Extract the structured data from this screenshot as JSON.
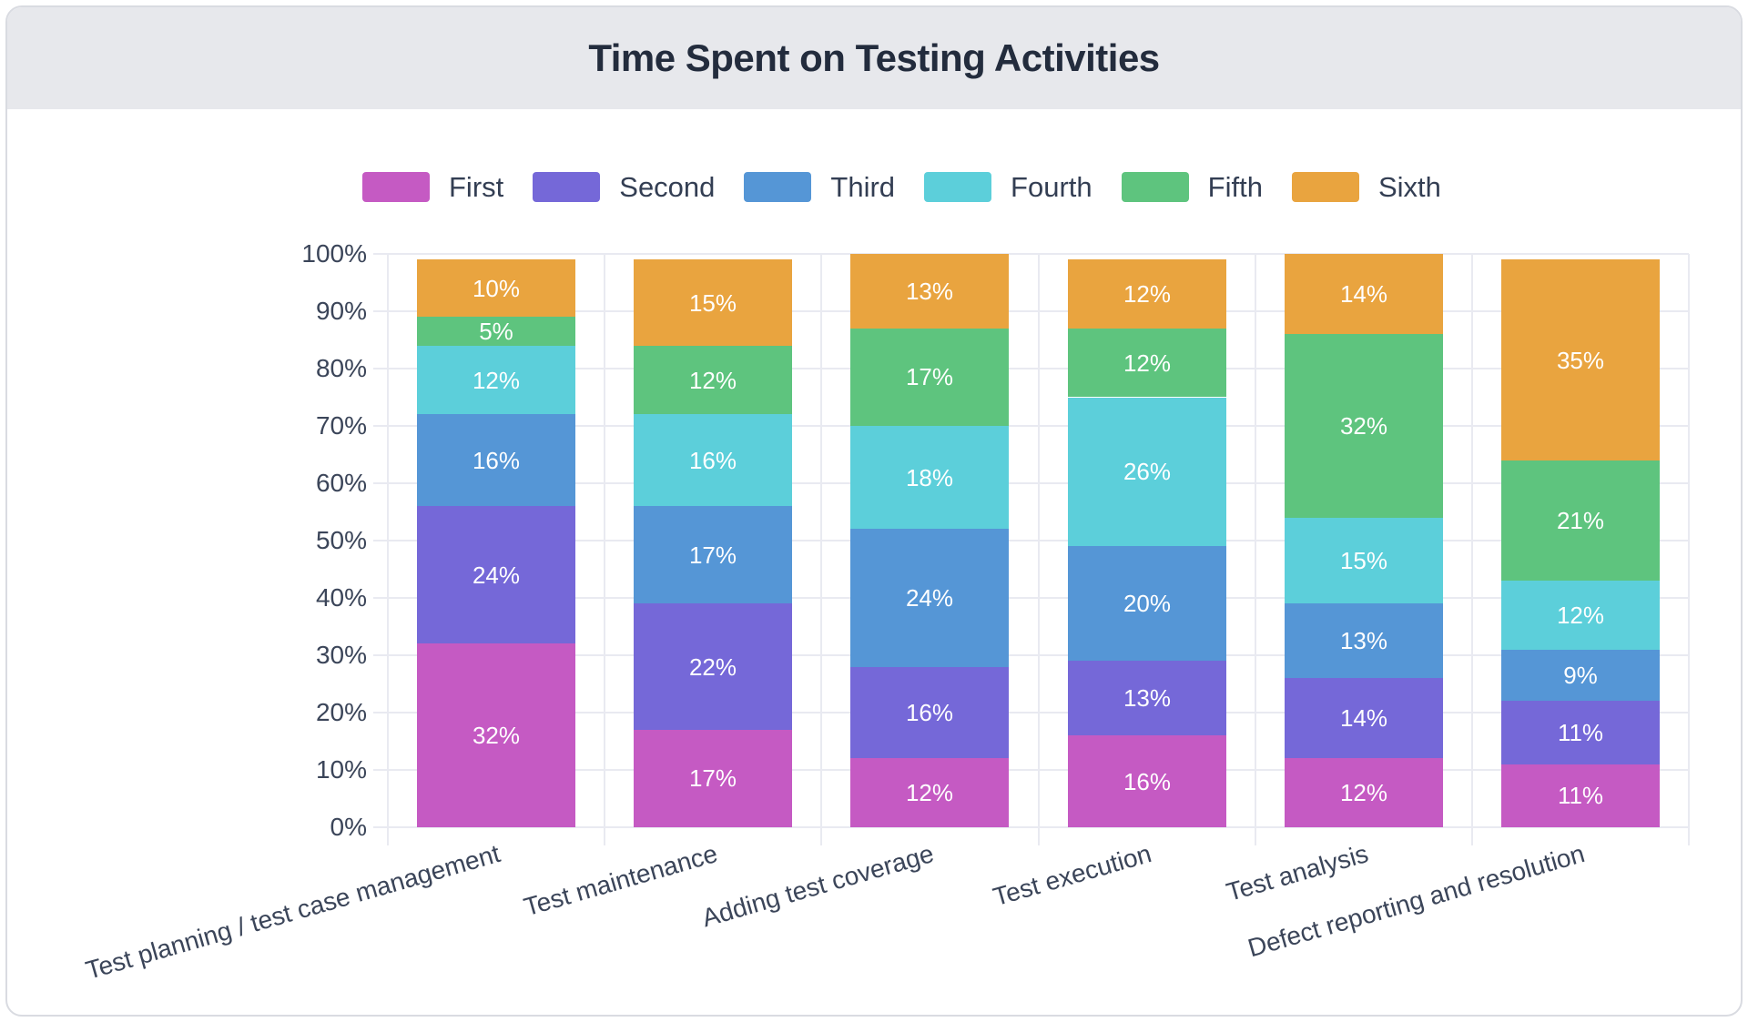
{
  "header": {
    "title": "Time Spent on Testing Activities"
  },
  "chart_data": {
    "type": "bar",
    "stacked": true,
    "title": "Time Spent on Testing Activities",
    "categories": [
      "Test planning / test case management",
      "Test maintenance",
      "Adding test coverage",
      "Test execution",
      "Test analysis",
      "Defect reporting and resolution"
    ],
    "series": [
      {
        "name": "First",
        "color": "#c55ac3",
        "values": [
          32,
          17,
          12,
          16,
          12,
          11
        ]
      },
      {
        "name": "Second",
        "color": "#7568d8",
        "values": [
          24,
          22,
          16,
          13,
          14,
          11
        ]
      },
      {
        "name": "Third",
        "color": "#5596d6",
        "values": [
          16,
          17,
          24,
          20,
          13,
          9
        ]
      },
      {
        "name": "Fourth",
        "color": "#5ccfda",
        "values": [
          12,
          16,
          18,
          26,
          15,
          12
        ]
      },
      {
        "name": "Fifth",
        "color": "#5ec47e",
        "values": [
          5,
          12,
          17,
          12,
          32,
          21
        ]
      },
      {
        "name": "Sixth",
        "color": "#e9a43f",
        "values": [
          10,
          15,
          13,
          12,
          14,
          35
        ]
      }
    ],
    "value_suffix": "%",
    "ylim": [
      0,
      100
    ],
    "ytick_step": 10,
    "y_tick_labels": [
      "0%",
      "10%",
      "20%",
      "30%",
      "40%",
      "50%",
      "60%",
      "70%",
      "80%",
      "90%",
      "100%"
    ],
    "legend_position": "top",
    "grid": true,
    "colors": {
      "axis_text": "#3b4559",
      "gridline": "#e9eaf1",
      "header_band": "#e7e8ec",
      "card_border": "#d9dbe1",
      "title_text": "#232c3d",
      "segment_label": "#ffffff"
    }
  }
}
